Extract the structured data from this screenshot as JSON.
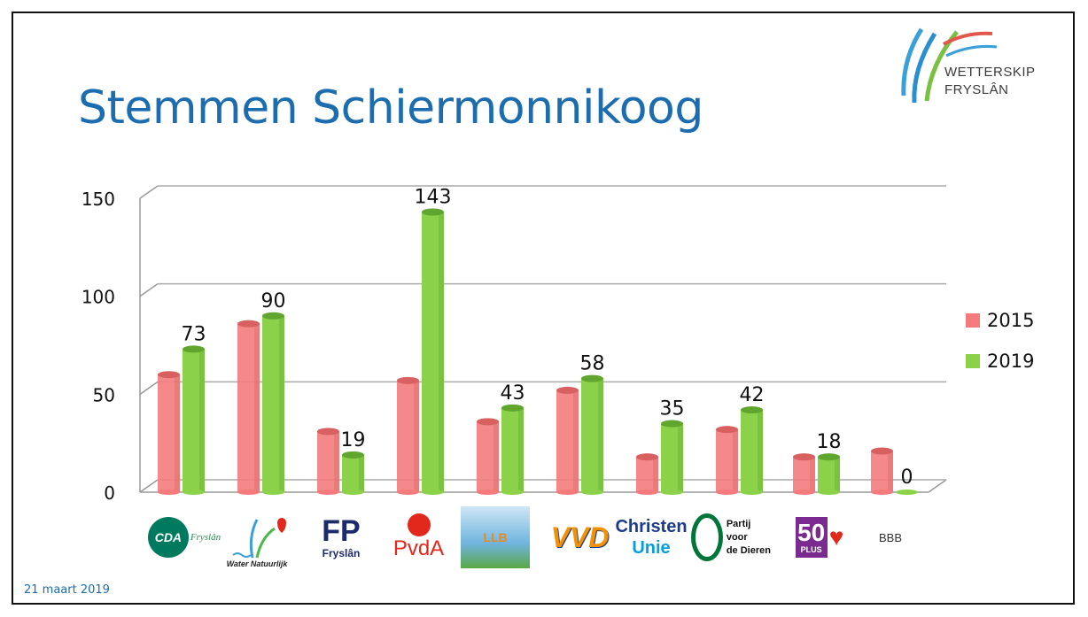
{
  "title": "Stemmen Schiermonnikoog",
  "brand": {
    "line1": "WETTERSKIP",
    "line2": "FRYSLÂN"
  },
  "footer_date": "21 maart 2019",
  "colors": {
    "2015": "#f47b7b",
    "2019": "#8bd14a",
    "title": "#1c6db0"
  },
  "parties": [
    {
      "logo_text": "CDA",
      "logo_sub": "Fryslân"
    },
    {
      "logo_text": "Water Natuurlijk"
    },
    {
      "logo_text": "FP",
      "logo_sub": "Fryslân"
    },
    {
      "logo_text": "PvdA"
    },
    {
      "logo_text": "LLB"
    },
    {
      "logo_text": "VVD"
    },
    {
      "logo_text": "Christen",
      "logo_sub": "Unie"
    },
    {
      "logo_text": "Partij voor",
      "logo_sub": "de Dieren"
    },
    {
      "logo_text": "50",
      "logo_sub": "PLUS"
    },
    {
      "logo_text": "BBB"
    }
  ],
  "chart_data": {
    "type": "bar",
    "title": "Stemmen Schiermonnikoog",
    "categories": [
      "CDA Fryslân",
      "Water Natuurlijk",
      "FNP Fryslân",
      "PvdA",
      "LLB",
      "VVD",
      "ChristenUnie",
      "Partij voor de Dieren",
      "50PLUS",
      "BBB"
    ],
    "series": [
      {
        "name": "2015",
        "values": [
          60,
          86,
          31,
          57,
          36,
          52,
          18,
          32,
          18,
          21
        ]
      },
      {
        "name": "2019",
        "values": [
          73,
          90,
          19,
          143,
          43,
          58,
          35,
          42,
          18,
          0
        ]
      }
    ],
    "data_labels_series": "2019",
    "yticks": [
      "0",
      "50",
      "100",
      "150"
    ],
    "ylim": [
      0,
      150
    ],
    "grid": true,
    "legend": "right",
    "xlabel": "",
    "ylabel": ""
  }
}
